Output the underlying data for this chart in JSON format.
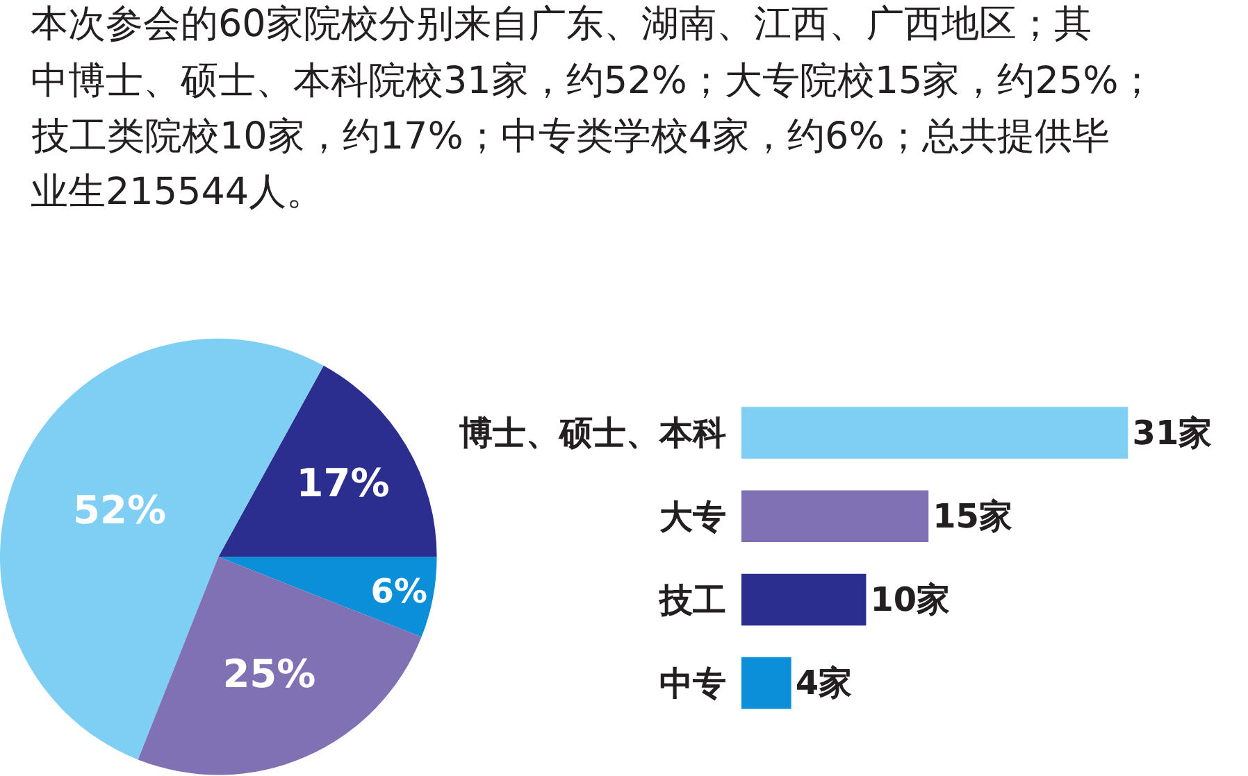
{
  "chart_data": [
    {
      "type": "pie",
      "annotations": [
        "本次参会的60家院校分别来自广东、湖南、江西、广西地区；其",
        "中博士、硕士、本科院校31家，约52%；大专院校15家，约25%；",
        "技工类院校10家，约17%；中专类学校4家，约6%；总共提供毕",
        "业生215544人。"
      ],
      "categories": [
        null,
        null,
        null,
        null
      ],
      "values": [
        6,
        17,
        52,
        25
      ],
      "colors": [
        "#0a8fd8",
        "#2b2e8f",
        "#7fcef3",
        "#8070b4"
      ],
      "value_labels": [
        "6%",
        "17%",
        "52%",
        "25%"
      ]
    },
    {
      "type": "bar",
      "orientation": "horizontal",
      "categories": [
        "博士、硕士、本科",
        "大专",
        "技工",
        "中专"
      ],
      "values": [
        31,
        15,
        10,
        4
      ],
      "colors": [
        "#7fcef3",
        "#8070b4",
        "#2b2e8f",
        "#0a8fd8"
      ],
      "value_labels": [
        "31家",
        "15家",
        "10家",
        "4家"
      ],
      "tick_labels": "y"
    }
  ]
}
